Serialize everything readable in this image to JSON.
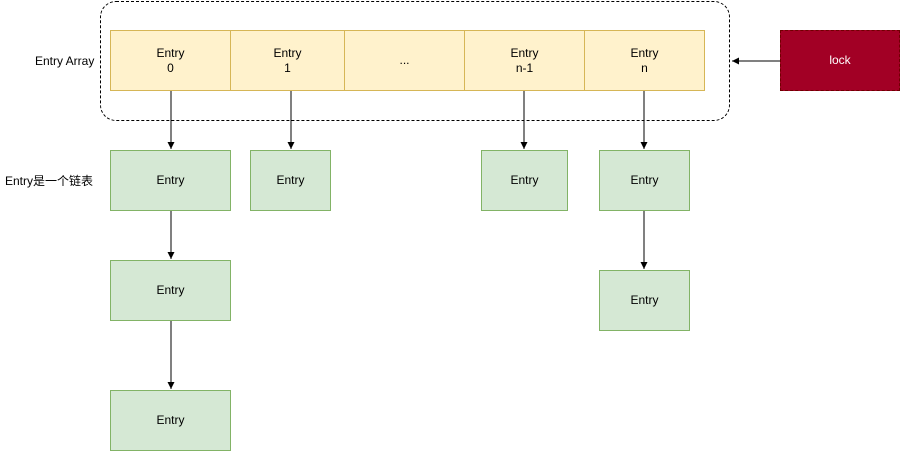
{
  "labels": {
    "array_label": "Entry Array",
    "list_label": "Entry是一个链表"
  },
  "array_cells": [
    {
      "line1": "Entry",
      "line2": "0"
    },
    {
      "line1": "Entry",
      "line2": "1"
    },
    {
      "line1": "...",
      "line2": ""
    },
    {
      "line1": "Entry",
      "line2": "n-1"
    },
    {
      "line1": "Entry",
      "line2": "n"
    }
  ],
  "lock": {
    "label": "lock"
  },
  "chains": {
    "col0": [
      "Entry",
      "Entry",
      "Entry"
    ],
    "col1": [
      "Entry"
    ],
    "col3": [
      "Entry"
    ],
    "col4": [
      "Entry",
      "Entry"
    ]
  },
  "colors": {
    "array_fill": "#fff2cc",
    "array_stroke": "#d6b656",
    "node_fill": "#d5e8d4",
    "node_stroke": "#82b366",
    "lock_fill": "#a20025",
    "lock_stroke": "#6f0000"
  }
}
